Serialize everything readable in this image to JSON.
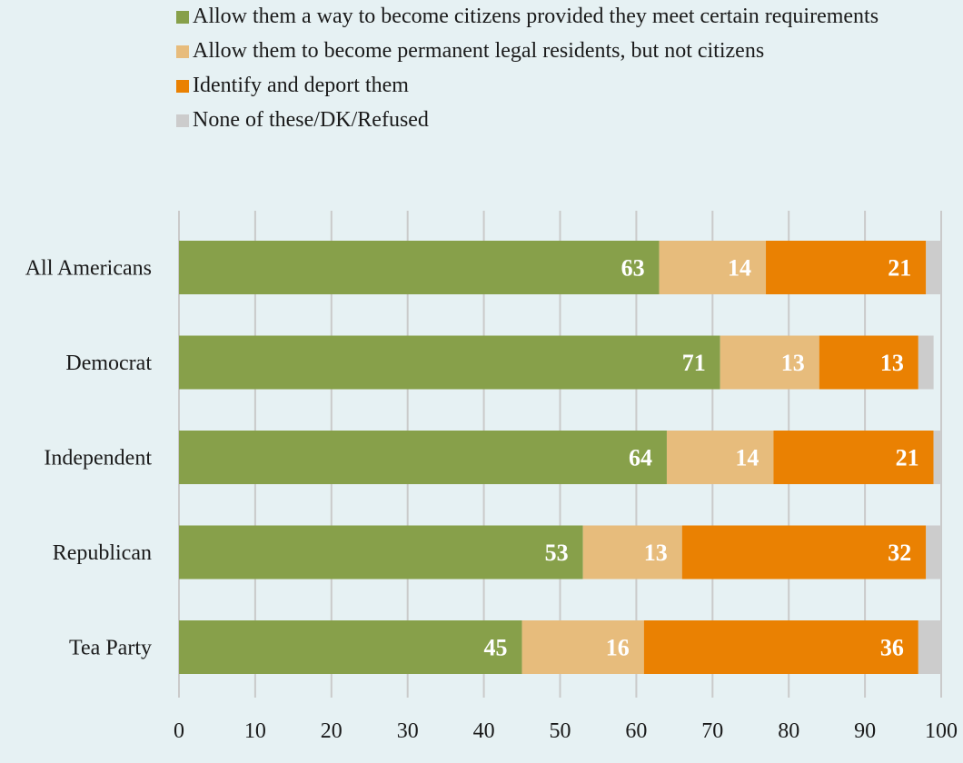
{
  "chart_data": {
    "type": "bar",
    "orientation": "horizontal",
    "stacked": true,
    "categories": [
      "All Americans",
      "Democrat",
      "Independent",
      "Republican",
      "Tea Party"
    ],
    "series": [
      {
        "name": "Allow them a way to become citizens provided they meet certain requirements",
        "color": "#87a04a",
        "values": [
          63,
          71,
          64,
          53,
          45
        ],
        "labels": [
          "63",
          "71",
          "64",
          "53",
          "45"
        ]
      },
      {
        "name": "Allow them to become permanent legal residents, but not citizens",
        "color": "#e7bc7c",
        "values": [
          14,
          13,
          14,
          13,
          16
        ],
        "labels": [
          "14",
          "13",
          "14",
          "13",
          "16"
        ]
      },
      {
        "name": "Identify and deport them",
        "color": "#ea8102",
        "values": [
          21,
          13,
          21,
          32,
          36
        ],
        "labels": [
          "21",
          "13",
          "21",
          "32",
          "36"
        ]
      },
      {
        "name": "None of these/DK/Refused",
        "color": "#cccccc",
        "values": [
          2,
          2,
          1,
          2,
          3
        ],
        "labels": [
          "",
          "",
          "",
          "",
          ""
        ]
      }
    ],
    "xlim": [
      0,
      100
    ],
    "xticks": [
      "0",
      "10",
      "20",
      "30",
      "40",
      "50",
      "60",
      "70",
      "80",
      "90",
      "100"
    ],
    "grid": true,
    "legend_position": "top"
  }
}
